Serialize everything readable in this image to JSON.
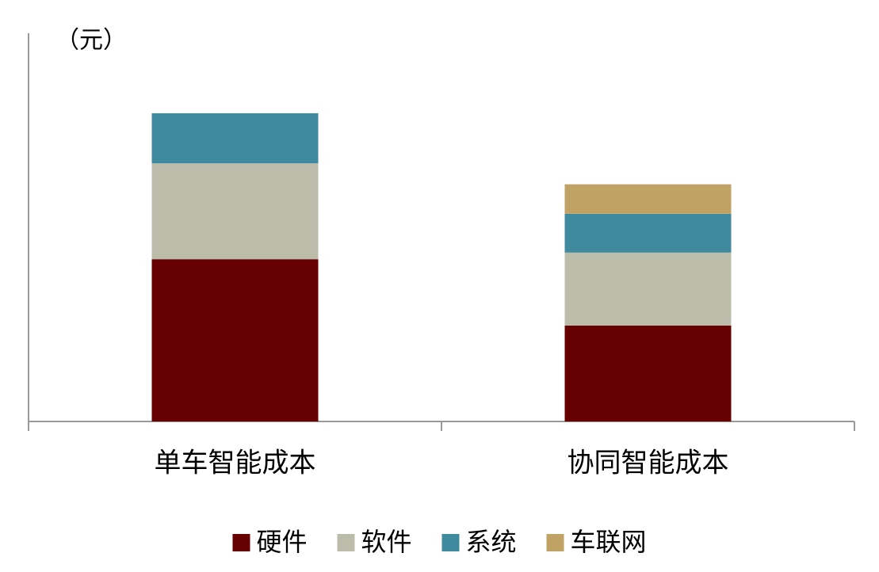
{
  "chart_data": {
    "type": "stacked_bar",
    "y_label": "（元）",
    "categories": [
      "单车智能成本",
      "协同智能成本"
    ],
    "series": [
      {
        "name": "硬件",
        "color": "#660000",
        "values": [
          41.8,
          24.7
        ]
      },
      {
        "name": "软件",
        "color": "#bcbcaa",
        "values": [
          24.7,
          18.8
        ]
      },
      {
        "name": "系统",
        "color": "#3f8a9e",
        "values": [
          12.9,
          10
        ]
      },
      {
        "name": "车联网",
        "color": "#c1a265",
        "values": [
          0,
          7.6
        ]
      }
    ],
    "ylim": [
      0,
      100
    ],
    "legend": "bottom"
  }
}
